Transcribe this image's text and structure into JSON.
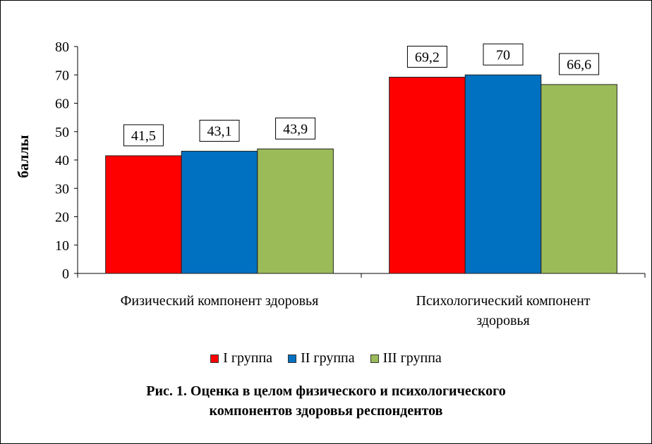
{
  "chart_data": {
    "type": "bar",
    "categories": [
      [
        "Физический компонент здоровья"
      ],
      [
        "Психологический компонент",
        "здоровья"
      ]
    ],
    "series": [
      {
        "name": "I группа",
        "color": "#ff0000",
        "values": [
          41.5,
          69.2
        ],
        "labels": [
          "41,5",
          "69,2"
        ]
      },
      {
        "name": "II группа",
        "color": "#0070c0",
        "values": [
          43.1,
          70
        ],
        "labels": [
          "43,1",
          "70"
        ]
      },
      {
        "name": "III группа",
        "color": "#9bbb59",
        "values": [
          43.9,
          66.6
        ],
        "labels": [
          "43,9",
          "66,6"
        ]
      }
    ],
    "ylabel": "баллы",
    "ylim": [
      0,
      80
    ],
    "yticks": [
      0,
      10,
      20,
      30,
      40,
      50,
      60,
      70,
      80
    ],
    "grid": false,
    "legend_position": "bottom"
  },
  "caption": {
    "line1": "Рис. 1. Оценка в целом  физического и психологического",
    "line2": "компонентов здоровья респондентов"
  }
}
